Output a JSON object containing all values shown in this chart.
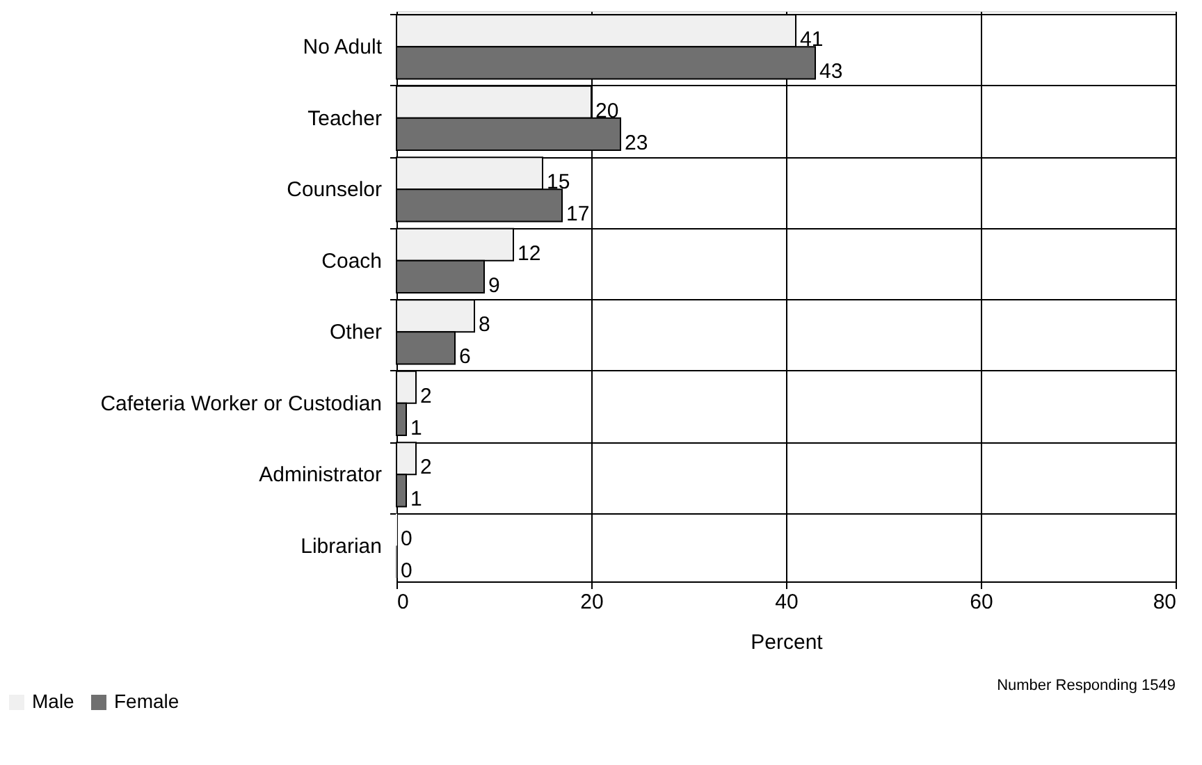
{
  "chart_data": {
    "type": "bar",
    "orientation": "horizontal",
    "xlabel": "Percent",
    "categories": [
      "No Adult",
      "Teacher",
      "Counselor",
      "Coach",
      "Other",
      "Cafeteria Worker or Custodian",
      "Administrator",
      "Librarian"
    ],
    "series": [
      {
        "name": "Male",
        "color": "#f0f0f0",
        "values": [
          41,
          20,
          15,
          12,
          8,
          2,
          2,
          0
        ]
      },
      {
        "name": "Female",
        "color": "#707070",
        "values": [
          43,
          23,
          17,
          9,
          6,
          1,
          1,
          0
        ]
      }
    ],
    "xlim": [
      0,
      80
    ],
    "xticks": [
      0,
      20,
      40,
      60,
      80
    ],
    "grid": true,
    "legend": "bottom left",
    "data_labels": true,
    "annotations": [
      "Number Responding  1549"
    ]
  }
}
